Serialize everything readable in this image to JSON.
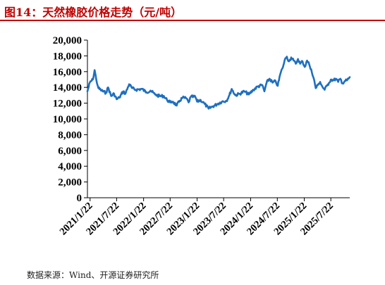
{
  "title": "图14：天然橡胶价格走势（元/吨）",
  "source": "数据来源：Wind、开源证券研究所",
  "colors": {
    "title": "#c00000",
    "line": "#1f6fbf",
    "axis": "#000000"
  },
  "chart_data": {
    "type": "line",
    "title": "",
    "xlabel": "",
    "ylabel": "",
    "ylim": [
      0,
      20000
    ],
    "yticks": [
      0,
      2000,
      4000,
      6000,
      8000,
      10000,
      12000,
      14000,
      16000,
      18000,
      20000
    ],
    "ytick_labels": [
      "0",
      "2,000",
      "4,000",
      "6,000",
      "8,000",
      "10,000",
      "12,000",
      "14,000",
      "16,000",
      "18,000",
      "20,000"
    ],
    "xlim": [
      "2021/1/4",
      "2025/11/28"
    ],
    "xticks": [
      "2021/1/22",
      "2021/7/22",
      "2022/1/22",
      "2022/7/22",
      "2023/1/22",
      "2023/7/22",
      "2024/1/22",
      "2024/7/22",
      "2025/1/22",
      "2025/7/22"
    ],
    "grid": false,
    "legend": "none",
    "series": [
      {
        "name": "",
        "points": [
          [
            "2021/1/4",
            13500
          ],
          [
            "2021/1/20",
            14600
          ],
          [
            "2021/2/10",
            15000
          ],
          [
            "2021/2/22",
            16200
          ],
          [
            "2021/3/5",
            15000
          ],
          [
            "2021/3/20",
            13900
          ],
          [
            "2021/4/10",
            13600
          ],
          [
            "2021/5/10",
            13300
          ],
          [
            "2021/5/25",
            14000
          ],
          [
            "2021/6/15",
            12900
          ],
          [
            "2021/7/5",
            13200
          ],
          [
            "2021/7/22",
            12500
          ],
          [
            "2021/8/10",
            12700
          ],
          [
            "2021/9/5",
            13500
          ],
          [
            "2021/9/20",
            13200
          ],
          [
            "2021/10/15",
            14400
          ],
          [
            "2021/11/5",
            13900
          ],
          [
            "2021/12/1",
            13700
          ],
          [
            "2022/1/10",
            13800
          ],
          [
            "2022/2/10",
            13400
          ],
          [
            "2022/3/10",
            13600
          ],
          [
            "2022/4/10",
            13100
          ],
          [
            "2022/5/10",
            12900
          ],
          [
            "2022/6/10",
            12900
          ],
          [
            "2022/7/1",
            12400
          ],
          [
            "2022/7/22",
            12100
          ],
          [
            "2022/8/10",
            12200
          ],
          [
            "2022/9/5",
            11700
          ],
          [
            "2022/9/25",
            12300
          ],
          [
            "2022/10/15",
            12700
          ],
          [
            "2022/11/10",
            12600
          ],
          [
            "2022/11/25",
            12100
          ],
          [
            "2022/12/10",
            12800
          ],
          [
            "2023/1/10",
            12800
          ],
          [
            "2023/1/22",
            12200
          ],
          [
            "2023/2/15",
            12400
          ],
          [
            "2023/3/15",
            11900
          ],
          [
            "2023/4/10",
            11300
          ],
          [
            "2023/5/10",
            11600
          ],
          [
            "2023/6/10",
            11900
          ],
          [
            "2023/7/10",
            12200
          ],
          [
            "2023/8/10",
            12300
          ],
          [
            "2023/8/30",
            13000
          ],
          [
            "2023/9/15",
            13800
          ],
          [
            "2023/10/10",
            13000
          ],
          [
            "2023/11/10",
            13200
          ],
          [
            "2023/12/10",
            13500
          ],
          [
            "2024/1/10",
            13100
          ],
          [
            "2024/2/10",
            13700
          ],
          [
            "2024/3/10",
            14100
          ],
          [
            "2024/4/10",
            14300
          ],
          [
            "2024/4/25",
            13500
          ],
          [
            "2024/5/10",
            14600
          ],
          [
            "2024/5/30",
            15100
          ],
          [
            "2024/6/20",
            14600
          ],
          [
            "2024/7/10",
            14800
          ],
          [
            "2024/7/25",
            14200
          ],
          [
            "2024/8/10",
            15600
          ],
          [
            "2024/8/25",
            16400
          ],
          [
            "2024/9/5",
            17000
          ],
          [
            "2024/9/15",
            17700
          ],
          [
            "2024/9/25",
            17900
          ],
          [
            "2024/10/10",
            17300
          ],
          [
            "2024/10/25",
            17800
          ],
          [
            "2024/11/10",
            17400
          ],
          [
            "2024/11/25",
            17000
          ],
          [
            "2024/12/10",
            17600
          ],
          [
            "2024/12/25",
            17000
          ],
          [
            "2025/1/10",
            17300
          ],
          [
            "2025/1/25",
            16600
          ],
          [
            "2025/2/10",
            17400
          ],
          [
            "2025/2/25",
            16900
          ],
          [
            "2025/3/10",
            16300
          ],
          [
            "2025/3/20",
            15500
          ],
          [
            "2025/4/1",
            14800
          ],
          [
            "2025/4/10",
            13900
          ],
          [
            "2025/4/25",
            14300
          ],
          [
            "2025/5/10",
            14700
          ],
          [
            "2025/5/25",
            14100
          ],
          [
            "2025/6/10",
            13700
          ],
          [
            "2025/6/25",
            14200
          ],
          [
            "2025/7/10",
            14600
          ],
          [
            "2025/7/22",
            15000
          ],
          [
            "2025/8/10",
            14900
          ],
          [
            "2025/8/25",
            15100
          ],
          [
            "2025/9/10",
            14700
          ],
          [
            "2025/9/25",
            15100
          ],
          [
            "2025/10/10",
            14500
          ],
          [
            "2025/10/25",
            14800
          ],
          [
            "2025/11/10",
            14900
          ],
          [
            "2025/11/20",
            15100
          ],
          [
            "2025/11/28",
            15300
          ]
        ]
      }
    ]
  }
}
